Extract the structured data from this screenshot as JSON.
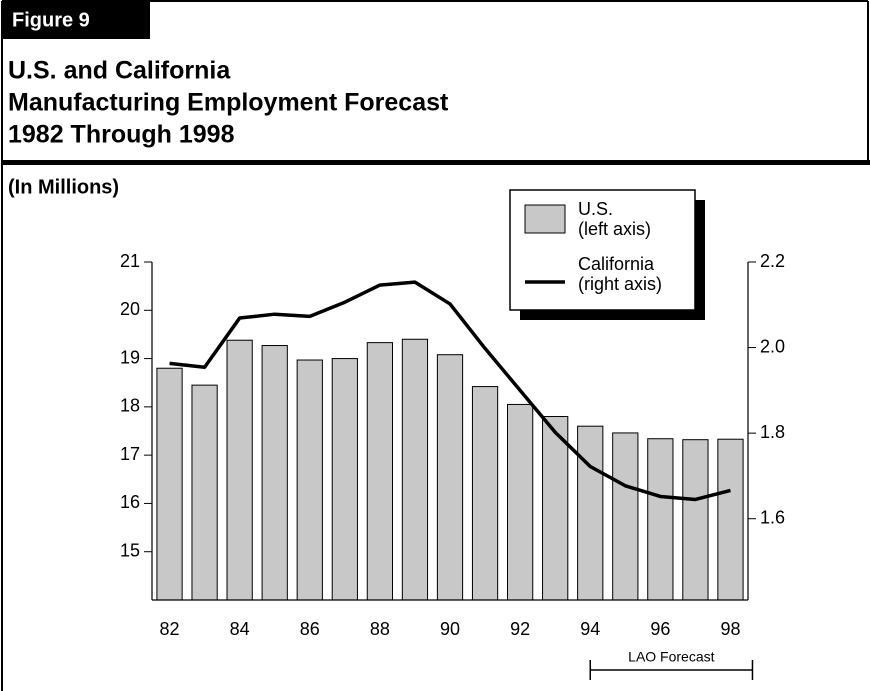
{
  "figure_label": "Figure 9",
  "chart_data": {
    "type": "bar_line",
    "title": [
      "U.S. and California",
      "Manufacturing Employment Forecast",
      "1982 Through 1998"
    ],
    "unit_note": "(In Millions)",
    "categories": [
      "82",
      null,
      "84",
      null,
      "86",
      null,
      "88",
      null,
      "90",
      null,
      "92",
      null,
      "94",
      null,
      "96",
      null,
      "98"
    ],
    "series": [
      {
        "name": "U.S.",
        "legend_sublabel": "(left axis)",
        "type": "bar",
        "color": "#c8c8c8",
        "values": [
          18.8,
          18.45,
          19.38,
          19.27,
          18.97,
          19.0,
          19.33,
          19.4,
          19.08,
          18.42,
          18.05,
          17.8,
          17.6,
          17.46,
          17.34,
          17.32,
          17.33
        ]
      },
      {
        "name": "California",
        "legend_sublabel": "(right axis)",
        "type": "line",
        "color": "#000000",
        "axis": "y2",
        "values": [
          1.963,
          1.954,
          2.069,
          2.078,
          2.073,
          2.106,
          2.146,
          2.153,
          2.102,
          1.998,
          1.9,
          1.802,
          1.722,
          1.677,
          1.652,
          1.645,
          1.666
        ]
      }
    ],
    "ylim": [
      14,
      21
    ],
    "yticks": [
      15,
      16,
      17,
      18,
      19,
      20,
      21
    ],
    "y2lim": [
      1.41,
      2.2
    ],
    "y2ticks": [
      1.6,
      1.8,
      {
        "value": 2,
        "label": "2.0"
      },
      2.2
    ],
    "annotation": "LAO Forecast",
    "annotation_range": [
      "94",
      "98"
    ]
  }
}
